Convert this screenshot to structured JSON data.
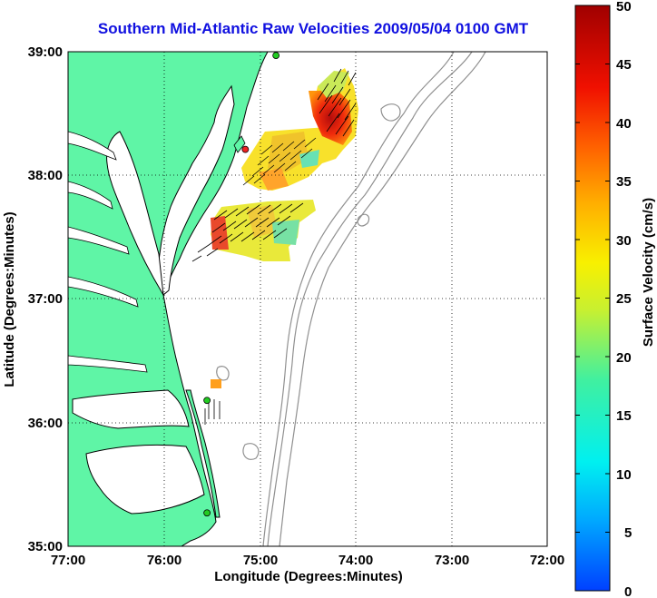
{
  "title": "Southern Mid-Atlantic Raw Velocities 2009/05/04 0100 GMT",
  "xlabel": "Longitude (Degrees:Minutes)",
  "ylabel": "Latitude (Degrees:Minutes)",
  "colorbar_label": "Surface Velocity (cm/s)",
  "x_ticks": [
    "77:00",
    "76:00",
    "75:00",
    "74:00",
    "73:00",
    "72:00"
  ],
  "y_ticks": [
    "39:00",
    "38:00",
    "37:00",
    "36:00",
    "35:00"
  ],
  "colorbar_ticks": [
    "50",
    "45",
    "40",
    "35",
    "30",
    "25",
    "20",
    "15",
    "10",
    "5",
    "0"
  ],
  "colors": {
    "land": "#5ff5a6",
    "station": "#22cc22",
    "station_red": "#ee2222",
    "title": "#1010e0",
    "isobath": "#888888"
  },
  "chart_data": {
    "type": "heatmap",
    "xlim": [
      -77,
      -72
    ],
    "ylim": [
      35,
      39
    ],
    "clim": [
      0,
      50
    ],
    "stations": [
      {
        "lon": -74.83,
        "lat": 38.97,
        "color": "green"
      },
      {
        "lon": -75.15,
        "lat": 38.21,
        "color": "red"
      },
      {
        "lon": -75.55,
        "lat": 36.18,
        "color": "green"
      },
      {
        "lon": -75.55,
        "lat": 35.27,
        "color": "green"
      }
    ]
  }
}
